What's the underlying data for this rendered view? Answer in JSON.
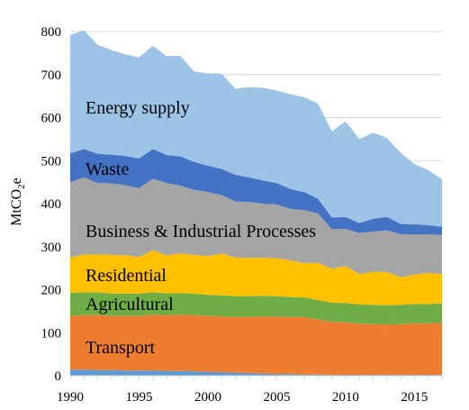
{
  "chart_data": {
    "type": "area",
    "stacked": true,
    "ylabel": "MtCO2e",
    "ylabel_parts": {
      "base": "MtCO",
      "sub": "2",
      "tail": "e"
    },
    "xlabel": "",
    "title": "",
    "ylim": [
      0,
      800
    ],
    "xlim": [
      1990,
      2017
    ],
    "yticks": [
      0,
      100,
      200,
      300,
      400,
      500,
      600,
      700,
      800
    ],
    "xticks": [
      1990,
      1995,
      2000,
      2005,
      2010,
      2015
    ],
    "grid": "horizontal",
    "legend": "inline labels",
    "x": [
      1990,
      1991,
      1992,
      1993,
      1994,
      1995,
      1996,
      1997,
      1998,
      1999,
      2000,
      2001,
      2002,
      2003,
      2004,
      2005,
      2006,
      2007,
      2008,
      2009,
      2010,
      2011,
      2012,
      2013,
      2014,
      2015,
      2016,
      2017
    ],
    "series": [
      {
        "name": "",
        "color": "#5b9bd5",
        "values": [
          14,
          14,
          13,
          13,
          12,
          12,
          12,
          11,
          11,
          10,
          9,
          8,
          7,
          6,
          5,
          4,
          4,
          3,
          3,
          2,
          2,
          2,
          2,
          2,
          2,
          2,
          2,
          2
        ]
      },
      {
        "name": "Transport",
        "color": "#ed7d31",
        "values": [
          125,
          127,
          128,
          126,
          127,
          127,
          130,
          130,
          131,
          131,
          130,
          130,
          130,
          131,
          133,
          133,
          133,
          133,
          128,
          123,
          122,
          119,
          118,
          117,
          118,
          120,
          120,
          121
        ]
      },
      {
        "name": "Agricultural",
        "color": "#70ad47",
        "values": [
          54,
          53,
          53,
          52,
          52,
          52,
          52,
          51,
          50,
          50,
          49,
          49,
          48,
          48,
          48,
          48,
          46,
          46,
          45,
          45,
          45,
          45,
          45,
          45,
          45,
          45,
          45,
          45
        ]
      },
      {
        "name": "Residential",
        "color": "#ffc000",
        "values": [
          82,
          88,
          88,
          90,
          89,
          85,
          98,
          88,
          92,
          90,
          90,
          97,
          90,
          89,
          88,
          88,
          85,
          80,
          86,
          79,
          86,
          70,
          77,
          77,
          64,
          68,
          72,
          68
        ]
      },
      {
        "name": "Business & Industrial Processes",
        "color": "#a5a5a5",
        "values": [
          175,
          179,
          166,
          166,
          163,
          160,
          166,
          168,
          158,
          151,
          149,
          136,
          130,
          130,
          126,
          125,
          120,
          123,
          115,
          92,
          86,
          96,
          93,
          97,
          100,
          93,
          90,
          91
        ]
      },
      {
        "name": "Waste",
        "color": "#4472c4",
        "values": [
          67,
          66,
          68,
          67,
          68,
          69,
          69,
          65,
          68,
          65,
          61,
          61,
          62,
          57,
          54,
          50,
          46,
          42,
          34,
          27,
          28,
          23,
          30,
          31,
          24,
          24,
          21,
          19
        ]
      },
      {
        "name": "Energy supply",
        "color": "#9dc3e6",
        "values": [
          275,
          276,
          253,
          243,
          236,
          235,
          240,
          230,
          233,
          210,
          215,
          221,
          200,
          210,
          215,
          215,
          220,
          220,
          222,
          200,
          222,
          195,
          200,
          184,
          165,
          140,
          128,
          111
        ]
      }
    ],
    "labels": {
      "energy": "Energy supply",
      "waste": "Waste",
      "business": "Business & Industrial Processes",
      "residential": "Residential",
      "agricultural": "Agricultural",
      "transport": "Transport"
    }
  }
}
